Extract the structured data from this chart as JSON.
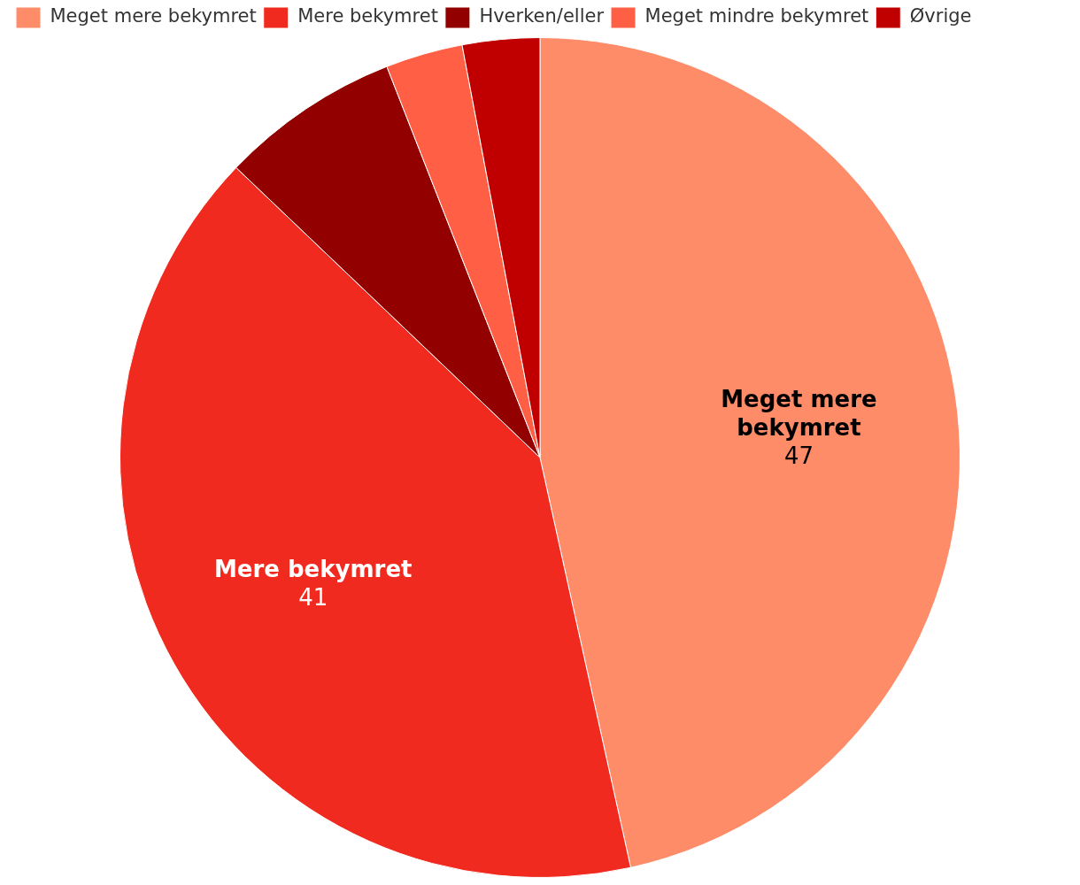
{
  "chart_data": {
    "type": "pie",
    "categories": [
      "Meget mere bekymret",
      "Mere bekymret",
      "Hverken/eller",
      "Meget mindre bekymret",
      "Øvrige"
    ],
    "values": [
      47,
      41,
      7,
      3,
      3
    ],
    "colors": [
      "#ff8c69",
      "#f12a1f",
      "#920000",
      "#ff5f45",
      "#c00000"
    ],
    "value_labels": [
      "47",
      "41",
      null,
      null,
      null
    ],
    "legend": "top left"
  }
}
